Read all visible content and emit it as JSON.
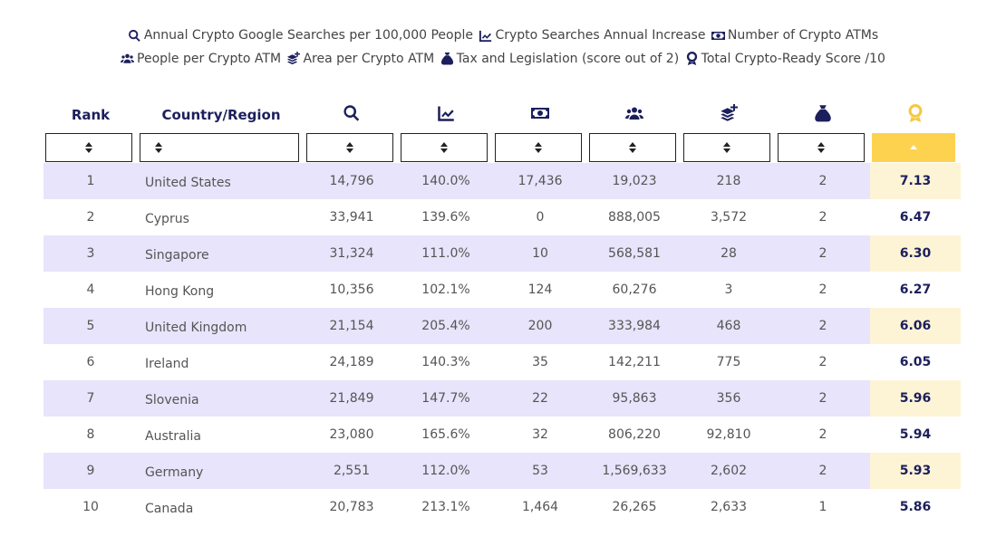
{
  "legend": [
    {
      "icon": "search-icon",
      "label": "Annual Crypto Google Searches per 100,000 People"
    },
    {
      "icon": "chart-line-icon",
      "label": "Crypto Searches Annual Increase"
    },
    {
      "icon": "money-bill-icon",
      "label": "Number of Crypto ATMs"
    },
    {
      "icon": "users-icon",
      "label": "People per Crypto ATM"
    },
    {
      "icon": "layers-plus-icon",
      "label": "Area per Crypto ATM"
    },
    {
      "icon": "money-bag-icon",
      "label": "Tax and Legislation (score out of 2)"
    },
    {
      "icon": "award-icon",
      "label": "Total Crypto-Ready Score /10"
    }
  ],
  "columns": [
    {
      "key": "rank",
      "label": "Rank"
    },
    {
      "key": "country",
      "label": "Country/Region"
    },
    {
      "key": "searches",
      "icon": "search-icon"
    },
    {
      "key": "increase",
      "icon": "chart-line-icon"
    },
    {
      "key": "atms",
      "icon": "money-bill-icon"
    },
    {
      "key": "people_per_atm",
      "icon": "users-icon"
    },
    {
      "key": "area_per_atm",
      "icon": "layers-plus-icon"
    },
    {
      "key": "tax",
      "icon": "money-bag-icon"
    },
    {
      "key": "score",
      "icon": "award-icon"
    }
  ],
  "sort": {
    "active_column": "score",
    "direction": "ascending-arrow"
  },
  "rows": [
    [
      "1",
      "United States",
      "14,796",
      "140.0%",
      "17,436",
      "19,023",
      "218",
      "2",
      "7.13"
    ],
    [
      "2",
      "Cyprus",
      "33,941",
      "139.6%",
      "0",
      "888,005",
      "3,572",
      "2",
      "6.47"
    ],
    [
      "3",
      "Singapore",
      "31,324",
      "111.0%",
      "10",
      "568,581",
      "28",
      "2",
      "6.30"
    ],
    [
      "4",
      "Hong Kong",
      "10,356",
      "102.1%",
      "124",
      "60,276",
      "3",
      "2",
      "6.27"
    ],
    [
      "5",
      "United Kingdom",
      "21,154",
      "205.4%",
      "200",
      "333,984",
      "468",
      "2",
      "6.06"
    ],
    [
      "6",
      "Ireland",
      "24,189",
      "140.3%",
      "35",
      "142,211",
      "775",
      "2",
      "6.05"
    ],
    [
      "7",
      "Slovenia",
      "21,849",
      "147.7%",
      "22",
      "95,863",
      "356",
      "2",
      "5.96"
    ],
    [
      "8",
      "Australia",
      "23,080",
      "165.6%",
      "32",
      "806,220",
      "92,810",
      "2",
      "5.94"
    ],
    [
      "9",
      "Germany",
      "2,551",
      "112.0%",
      "53",
      "1,569,633",
      "2,602",
      "2",
      "5.93"
    ],
    [
      "10",
      "Canada",
      "20,783",
      "213.1%",
      "1,464",
      "26,265",
      "2,633",
      "1",
      "5.86"
    ]
  ],
  "colors": {
    "navy": "#1c1f5c",
    "row_stripe": "#e7e4fb",
    "score_stripe": "#fdf4d6",
    "gold": "#fdd24f"
  }
}
